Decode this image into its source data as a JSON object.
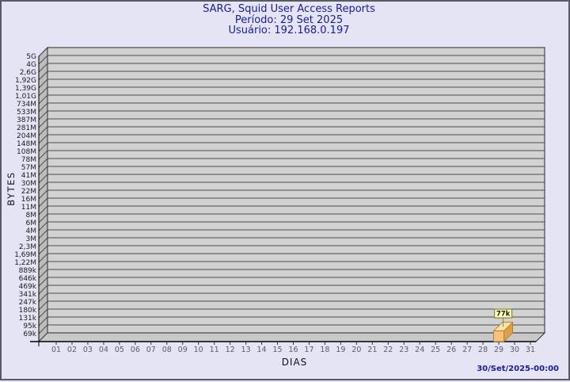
{
  "page": {
    "background_color": "#e4e4f5",
    "border_color": "#5a5a62"
  },
  "header": {
    "title": "SARG, Squid User Access Reports",
    "period_line": "Período: 29 Set 2025",
    "user_line": "Usuário: 192.168.0.197",
    "text_color": "#1b1b96"
  },
  "footer": {
    "timestamp": "30/Set/2025-00:00",
    "text_color": "#1b1b96"
  },
  "chart_data": {
    "type": "bar",
    "title": "SARG, Squid User Access Reports",
    "subtitle": [
      "Período: 29 Set 2025",
      "Usuário: 192.168.0.197"
    ],
    "xlabel": "DIAS",
    "ylabel": "BYTES",
    "y_scale": "log",
    "y_min_bytes": 69000,
    "y_max_bytes": 5000000000,
    "y_tick_labels": [
      "5G",
      "4G",
      "2,6G",
      "1,92G",
      "1,39G",
      "1,01G",
      "734M",
      "533M",
      "387M",
      "281M",
      "204M",
      "148M",
      "108M",
      "78M",
      "57M",
      "41M",
      "30M",
      "22M",
      "16M",
      "11M",
      "8M",
      "6M",
      "4M",
      "3M",
      "2,3M",
      "1,69M",
      "1,22M",
      "889k",
      "646k",
      "469k",
      "341k",
      "247k",
      "180k",
      "131k",
      "95k",
      "69k"
    ],
    "categories": [
      "01",
      "02",
      "03",
      "04",
      "05",
      "06",
      "07",
      "08",
      "09",
      "10",
      "11",
      "12",
      "13",
      "14",
      "15",
      "16",
      "17",
      "18",
      "19",
      "20",
      "21",
      "22",
      "23",
      "24",
      "25",
      "26",
      "27",
      "28",
      "29",
      "30",
      "31"
    ],
    "values": [
      0,
      0,
      0,
      0,
      0,
      0,
      0,
      0,
      0,
      0,
      0,
      0,
      0,
      0,
      0,
      0,
      0,
      0,
      0,
      0,
      0,
      0,
      0,
      0,
      0,
      0,
      0,
      0,
      77000,
      0,
      0
    ],
    "bar_labels": [
      null,
      null,
      null,
      null,
      null,
      null,
      null,
      null,
      null,
      null,
      null,
      null,
      null,
      null,
      null,
      null,
      null,
      null,
      null,
      null,
      null,
      null,
      null,
      null,
      null,
      null,
      null,
      null,
      "77k",
      null,
      null
    ],
    "grid": true,
    "legend": null,
    "bar_colors": {
      "front": "#f9c377",
      "top": "#fde1a3",
      "side": "#e39c4a",
      "outline": "#a3792f"
    },
    "value_label_style": {
      "bg": "#ffffc4",
      "border": "#8a8431",
      "text_color": "#1c1c00"
    },
    "plot_colors": {
      "wall": "#d2d2d2",
      "side_wall": "#bdbdbd",
      "floor": "#c8c8c8",
      "gridline": "#4c4c4c",
      "frame": "#2a2a2a",
      "tick_label_color": "#5d5d5d",
      "y_label_color": "#1c1c1c",
      "axis_title_color": "#111111"
    }
  }
}
